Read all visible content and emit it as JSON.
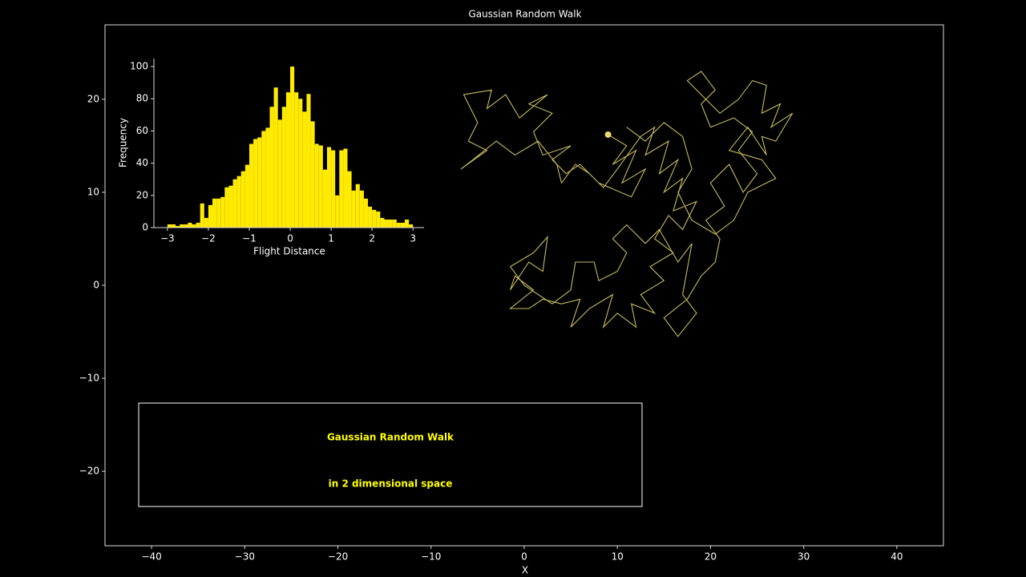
{
  "chart_data": [
    {
      "type": "line",
      "title": "Gaussian Random Walk",
      "xlabel": "X",
      "color": "#e8dc6e",
      "annotations": [
        "Gaussian Random Walk",
        "in 2 dimensional space"
      ],
      "xlim": [
        -45,
        45
      ],
      "ylim": [
        -28,
        28
      ],
      "xticks": [
        {
          "value": -40,
          "label": "−40"
        },
        {
          "value": -30,
          "label": "−30"
        },
        {
          "value": -20,
          "label": "−20"
        },
        {
          "value": -10,
          "label": "−10"
        },
        0,
        10,
        20,
        30,
        40
      ],
      "yticks": [
        {
          "value": -20,
          "label": "−20"
        },
        {
          "value": -10,
          "label": "−10"
        },
        0,
        10,
        20
      ],
      "x": [
        9,
        11,
        9.5,
        12,
        10.5,
        13,
        11.5,
        8,
        6,
        4.5,
        3,
        5,
        2,
        1,
        3,
        0.5,
        2.5,
        -0.5,
        -2,
        -4,
        -3.5,
        -6.5,
        -5,
        -6,
        -4,
        -6.8,
        -5.5,
        -3,
        -1,
        1.5,
        3.5,
        4,
        5.5,
        7,
        8.5,
        10,
        12.5,
        14,
        13,
        15.5,
        14.5,
        16.5,
        15,
        17,
        16,
        18.5,
        17,
        15.5,
        14,
        16,
        13.5,
        15,
        12.5,
        14,
        11.5,
        12,
        10,
        8.5,
        9.5,
        7,
        5,
        6,
        4,
        2,
        0.5,
        -1.5,
        1,
        -1,
        -1.5,
        0.5,
        2,
        2.5,
        1,
        -1.5,
        0,
        3,
        5,
        5.5,
        7.5,
        8,
        10,
        11,
        9.5,
        11,
        13,
        14.5,
        16.5,
        18,
        17,
        18.5,
        16.5,
        15,
        17.5,
        19,
        20.5,
        21,
        19.5,
        21.5,
        20,
        22,
        23.5,
        25,
        23,
        24.5,
        22.5,
        20,
        19,
        20.5,
        19,
        17.5,
        19.5,
        21,
        23,
        24.5,
        26,
        25.5,
        27.5,
        26.5,
        28.8,
        27,
        25.5,
        26,
        24,
        22,
        25.5,
        27,
        24,
        22.5,
        20.5,
        18,
        16.5,
        18,
        17,
        15,
        13,
        11
      ],
      "values": [
        16.2,
        15,
        13,
        14.5,
        11,
        12.5,
        9.5,
        11,
        13,
        12,
        13.5,
        15,
        14,
        16.5,
        18.5,
        19.5,
        20.5,
        18,
        20.5,
        19,
        21,
        20.5,
        17.5,
        15.5,
        14.5,
        12.5,
        13.5,
        15.5,
        14,
        15.5,
        13,
        11,
        13,
        12,
        10.5,
        12.5,
        16,
        17,
        14,
        15.5,
        12,
        13.5,
        10,
        11.5,
        8,
        9,
        6,
        7.5,
        5,
        3.5,
        2,
        0.5,
        -1,
        -3,
        -2,
        -4.5,
        -3,
        -4.5,
        -1,
        -2.5,
        -4.5,
        -1.5,
        -2,
        -1.5,
        -2.5,
        -2.5,
        -0.5,
        1,
        -0.5,
        2.5,
        1.5,
        5.2,
        3.5,
        2,
        0,
        -2,
        -0.5,
        2.5,
        2.5,
        0.5,
        1.5,
        3.5,
        5,
        6.5,
        4.5,
        6,
        2.5,
        4.5,
        -1,
        -3,
        -5.5,
        -3.5,
        -1.5,
        1,
        2.5,
        5,
        7,
        8.5,
        11,
        13,
        10,
        12,
        14.5,
        16.5,
        18,
        17,
        19.5,
        21,
        23,
        22,
        20,
        18.5,
        20,
        22,
        21.5,
        18.5,
        19.5,
        17,
        18.5,
        15.5,
        16,
        14,
        17,
        14.5,
        13.5,
        11.5,
        10,
        7,
        5.5,
        7,
        10,
        12.5,
        16,
        17.5,
        15.5,
        17
      ]
    },
    {
      "type": "histogram",
      "xlabel": "Flight Distance",
      "ylabel": "Frequency",
      "color": "#ffeb00",
      "xlim": [
        -3.33,
        3.27
      ],
      "ylim": [
        0,
        105
      ],
      "xticks": [
        {
          "value": -3,
          "label": "−3"
        },
        {
          "value": -2,
          "label": "−2"
        },
        {
          "value": -1,
          "label": "−1"
        },
        0,
        1,
        2,
        3
      ],
      "yticks": [
        0,
        20,
        40,
        60,
        80,
        100
      ],
      "bins": [
        -3.0,
        -2.9,
        -2.8,
        -2.7,
        -2.6,
        -2.5,
        -2.4,
        -2.3,
        -2.2,
        -2.1,
        -2.0,
        -1.9,
        -1.8,
        -1.7,
        -1.6,
        -1.5,
        -1.4,
        -1.3,
        -1.2,
        -1.1,
        -1.0,
        -0.9,
        -0.8,
        -0.7,
        -0.6,
        -0.5,
        -0.4,
        -0.3,
        -0.2,
        -0.1,
        0.0,
        0.1,
        0.2,
        0.3,
        0.4,
        0.5,
        0.6,
        0.7,
        0.8,
        0.9,
        1.0,
        1.1,
        1.2,
        1.3,
        1.4,
        1.5,
        1.6,
        1.7,
        1.8,
        1.9,
        2.0,
        2.1,
        2.2,
        2.3,
        2.4,
        2.5,
        2.6,
        2.7,
        2.8,
        2.9,
        3.0
      ],
      "values": [
        2,
        2,
        1,
        2,
        2,
        3,
        2,
        3,
        15,
        6,
        14,
        18,
        18,
        19,
        25,
        26,
        30,
        32,
        35,
        39,
        52,
        55,
        56,
        60,
        62,
        75,
        87,
        67,
        75,
        84,
        100,
        84,
        80,
        72,
        83,
        66,
        52,
        51,
        36,
        50,
        48,
        20,
        48,
        49,
        35,
        23,
        27,
        23,
        18,
        13,
        11,
        10,
        6,
        5,
        5,
        5,
        3,
        3,
        5,
        2
      ]
    }
  ]
}
